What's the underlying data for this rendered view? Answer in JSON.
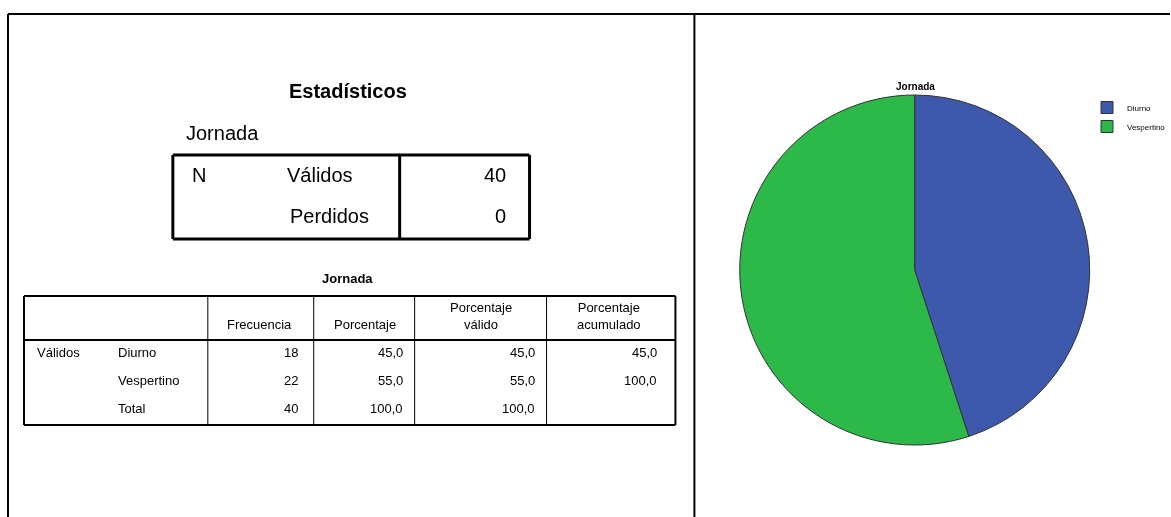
{
  "chart_data": [
    {
      "type": "other",
      "title": "Estadísticos",
      "subtitle": "Jornada",
      "annotations": [
        "N",
        "Válidos",
        "40",
        "Perdidos",
        "0"
      ]
    },
    {
      "type": "other",
      "title": "Jornada",
      "annotations": [
        "Frecuencia",
        "Porcentaje",
        "Porcentaje\nválido",
        "Porcentaje\nacumulado",
        "Válidos",
        "Diurno",
        "18",
        "45,0",
        "45,0",
        "45,0",
        "Vespertino",
        "22",
        "55,0",
        "55,0",
        "100,0",
        "Total",
        "40",
        "100,0",
        "100,0"
      ]
    },
    {
      "type": "pie",
      "title": "Jornada",
      "categories": [
        "Diurno",
        "Vespertino"
      ],
      "values": [
        45,
        55
      ],
      "colors": [
        "#3e58ac",
        "#2db84a"
      ],
      "legend": "top right"
    }
  ]
}
